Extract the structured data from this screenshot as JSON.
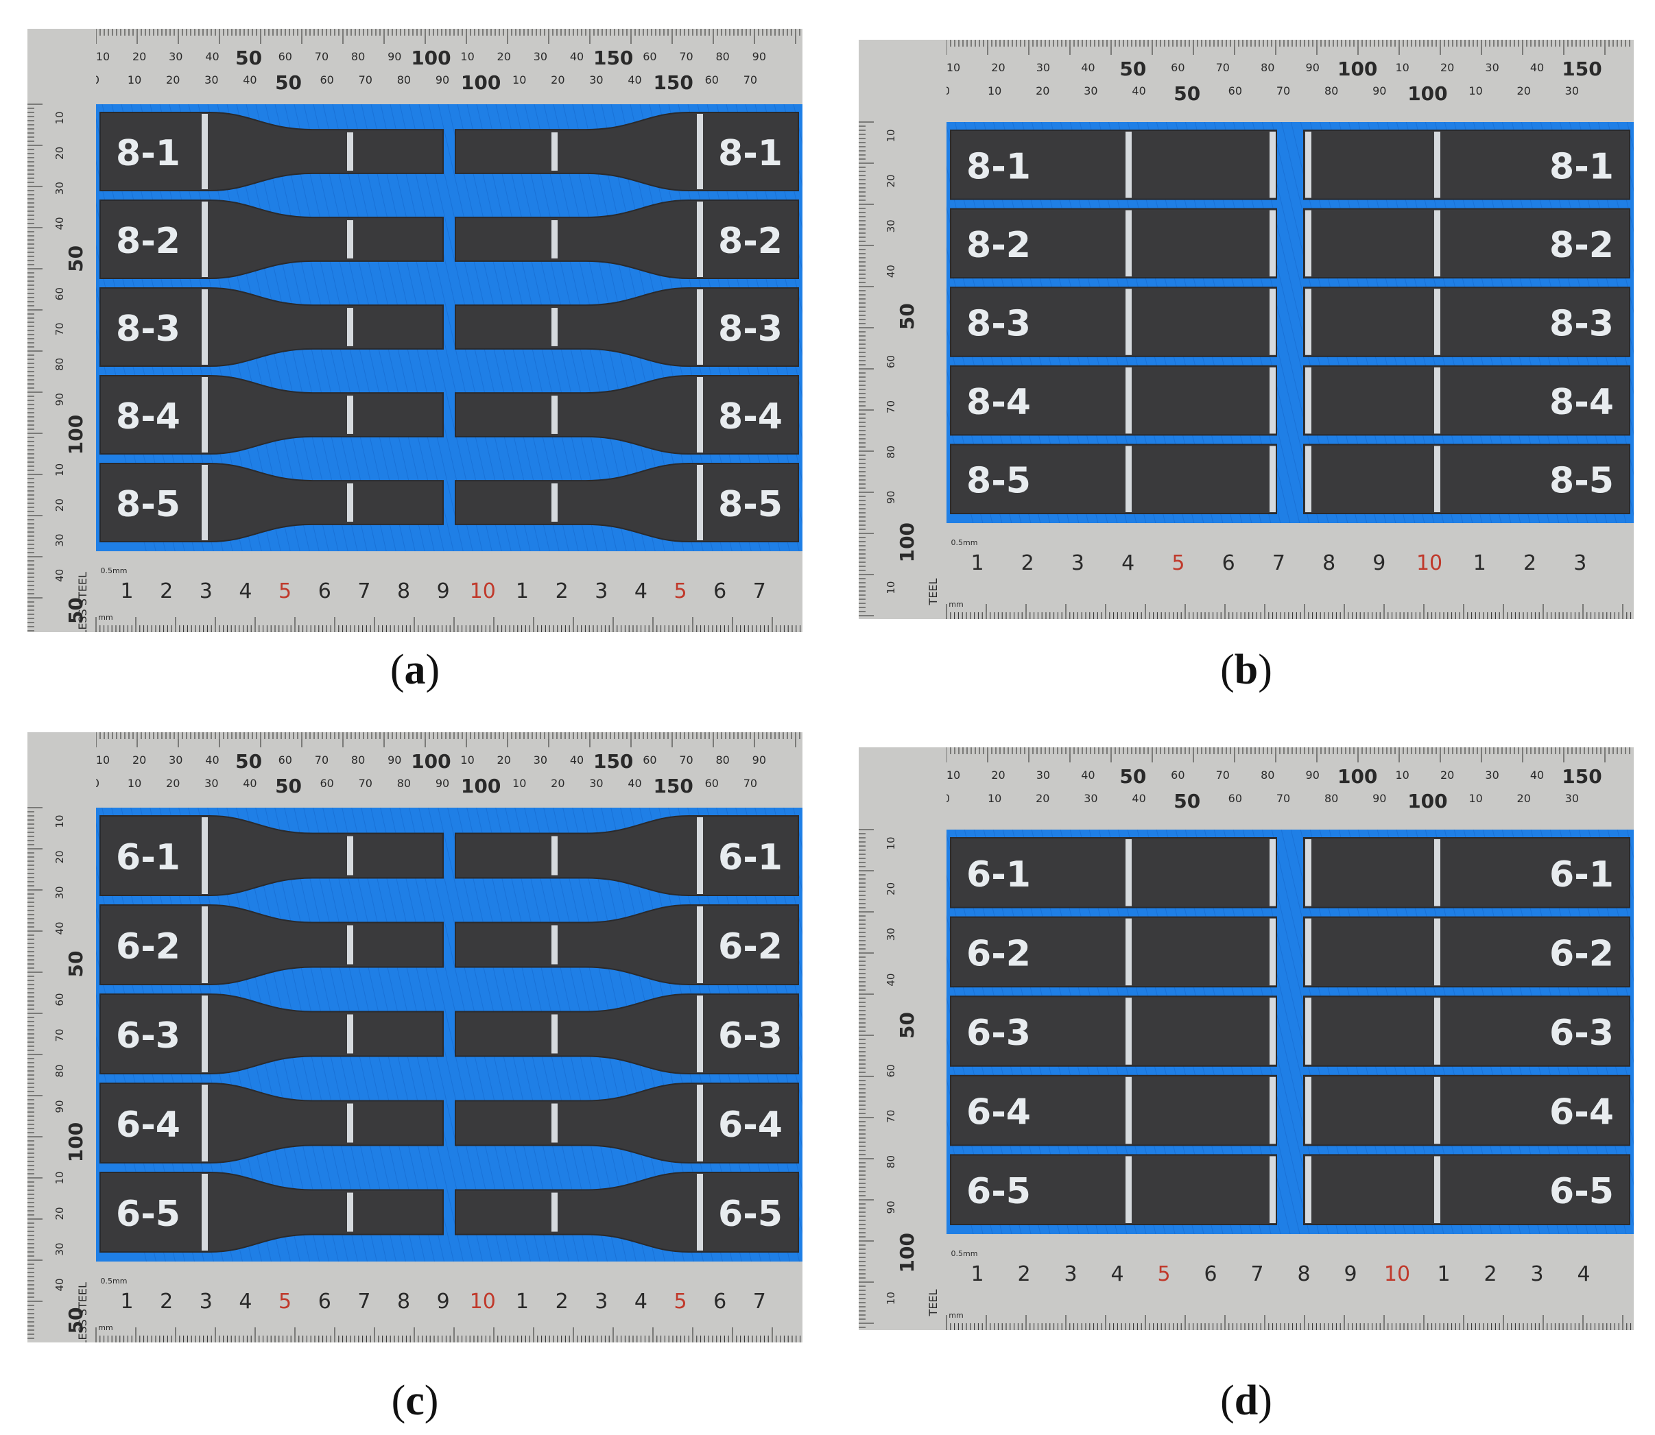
{
  "panels": [
    {
      "id": "a",
      "caption_open": "(",
      "caption_letter": "a",
      "caption_close": ")",
      "style": "dogbone",
      "top_scale_row1": [
        "10",
        "20",
        "30",
        "40",
        "50",
        "60",
        "70",
        "80",
        "90",
        "100",
        "10",
        "20",
        "30",
        "40",
        "150",
        "60",
        "70",
        "80",
        "90"
      ],
      "top_scale_row2": [
        "0",
        "10",
        "20",
        "30",
        "40",
        "50",
        "60",
        "70",
        "80",
        "90",
        "100",
        "10",
        "20",
        "30",
        "40",
        "150",
        "60",
        "70"
      ],
      "left_scale": [
        "10",
        "20",
        "30",
        "40",
        "50",
        "60",
        "70",
        "80",
        "90",
        "100",
        "10",
        "20",
        "30",
        "40",
        "50"
      ],
      "bottom_scale": [
        "1",
        "2",
        "3",
        "4",
        "5",
        "6",
        "7",
        "8",
        "9",
        "10",
        "1",
        "2",
        "3",
        "4",
        "5",
        "6",
        "7"
      ],
      "ruler_brand": "STAINLESS STEEL",
      "ruler_unit_small": "0.5mm",
      "ruler_unit": "mm",
      "specimens": [
        {
          "left_label": "8-1",
          "right_label": "8-1"
        },
        {
          "left_label": "8-2",
          "right_label": "8-2"
        },
        {
          "left_label": "8-3",
          "right_label": "8-3"
        },
        {
          "left_label": "8-4",
          "right_label": "8-4"
        },
        {
          "left_label": "8-5",
          "right_label": "8-5"
        }
      ]
    },
    {
      "id": "b",
      "caption_open": "(",
      "caption_letter": "b",
      "caption_close": ")",
      "style": "straight",
      "top_scale_row1": [
        "10",
        "20",
        "30",
        "40",
        "50",
        "60",
        "70",
        "80",
        "90",
        "100",
        "10",
        "20",
        "30",
        "40",
        "150"
      ],
      "top_scale_row2": [
        "0",
        "10",
        "20",
        "30",
        "40",
        "50",
        "60",
        "70",
        "80",
        "90",
        "100",
        "10",
        "20",
        "30"
      ],
      "left_scale": [
        "10",
        "20",
        "30",
        "40",
        "50",
        "60",
        "70",
        "80",
        "90",
        "100",
        "10"
      ],
      "bottom_scale": [
        "1",
        "2",
        "3",
        "4",
        "5",
        "6",
        "7",
        "8",
        "9",
        "10",
        "1",
        "2",
        "3"
      ],
      "ruler_brand": "TEEL",
      "ruler_unit_small": "0.5mm",
      "ruler_unit": "mm",
      "specimens": [
        {
          "left_label": "8-1",
          "right_label": "8-1"
        },
        {
          "left_label": "8-2",
          "right_label": "8-2"
        },
        {
          "left_label": "8-3",
          "right_label": "8-3"
        },
        {
          "left_label": "8-4",
          "right_label": "8-4"
        },
        {
          "left_label": "8-5",
          "right_label": "8-5"
        }
      ]
    },
    {
      "id": "c",
      "caption_open": "(",
      "caption_letter": "c",
      "caption_close": ")",
      "style": "dogbone",
      "top_scale_row1": [
        "10",
        "20",
        "30",
        "40",
        "50",
        "60",
        "70",
        "80",
        "90",
        "100",
        "10",
        "20",
        "30",
        "40",
        "150",
        "60",
        "70",
        "80",
        "90"
      ],
      "top_scale_row2": [
        "0",
        "10",
        "20",
        "30",
        "40",
        "50",
        "60",
        "70",
        "80",
        "90",
        "100",
        "10",
        "20",
        "30",
        "40",
        "150",
        "60",
        "70"
      ],
      "left_scale": [
        "10",
        "20",
        "30",
        "40",
        "50",
        "60",
        "70",
        "80",
        "90",
        "100",
        "10",
        "20",
        "30",
        "40",
        "50"
      ],
      "bottom_scale": [
        "1",
        "2",
        "3",
        "4",
        "5",
        "6",
        "7",
        "8",
        "9",
        "10",
        "1",
        "2",
        "3",
        "4",
        "5",
        "6",
        "7"
      ],
      "ruler_brand": "STAINLESS STEEL",
      "ruler_unit_small": "0.5mm",
      "ruler_unit": "mm",
      "specimens": [
        {
          "left_label": "6-1",
          "right_label": "6-1"
        },
        {
          "left_label": "6-2",
          "right_label": "6-2"
        },
        {
          "left_label": "6-3",
          "right_label": "6-3"
        },
        {
          "left_label": "6-4",
          "right_label": "6-4"
        },
        {
          "left_label": "6-5",
          "right_label": "6-5"
        }
      ]
    },
    {
      "id": "d",
      "caption_open": "(",
      "caption_letter": "d",
      "caption_close": ")",
      "style": "straight",
      "top_scale_row1": [
        "10",
        "20",
        "30",
        "40",
        "50",
        "60",
        "70",
        "80",
        "90",
        "100",
        "10",
        "20",
        "30",
        "40",
        "150"
      ],
      "top_scale_row2": [
        "0",
        "10",
        "20",
        "30",
        "40",
        "50",
        "60",
        "70",
        "80",
        "90",
        "100",
        "10",
        "20",
        "30"
      ],
      "left_scale": [
        "10",
        "20",
        "30",
        "40",
        "50",
        "60",
        "70",
        "80",
        "90",
        "100",
        "10"
      ],
      "bottom_scale": [
        "1",
        "2",
        "3",
        "4",
        "5",
        "6",
        "7",
        "8",
        "9",
        "10",
        "1",
        "2",
        "3",
        "4"
      ],
      "ruler_brand": "TEEL",
      "ruler_unit_small": "0.5mm",
      "ruler_unit": "mm",
      "specimens": [
        {
          "left_label": "6-1",
          "right_label": "6-1"
        },
        {
          "left_label": "6-2",
          "right_label": "6-2"
        },
        {
          "left_label": "6-3",
          "right_label": "6-3"
        },
        {
          "left_label": "6-4",
          "right_label": "6-4"
        },
        {
          "left_label": "6-5",
          "right_label": "6-5"
        }
      ]
    }
  ],
  "colors": {
    "background_mat": "#1f7fe6",
    "mat_dark": "#1565c8",
    "ruler": "#c9c9c7",
    "ruler_ink": "#2a2a2a",
    "ruler_red": "#c0392b",
    "specimen": "#3a3a3c",
    "specimen_edge": "#2a2a2c",
    "chalk": "#e8ecef"
  }
}
